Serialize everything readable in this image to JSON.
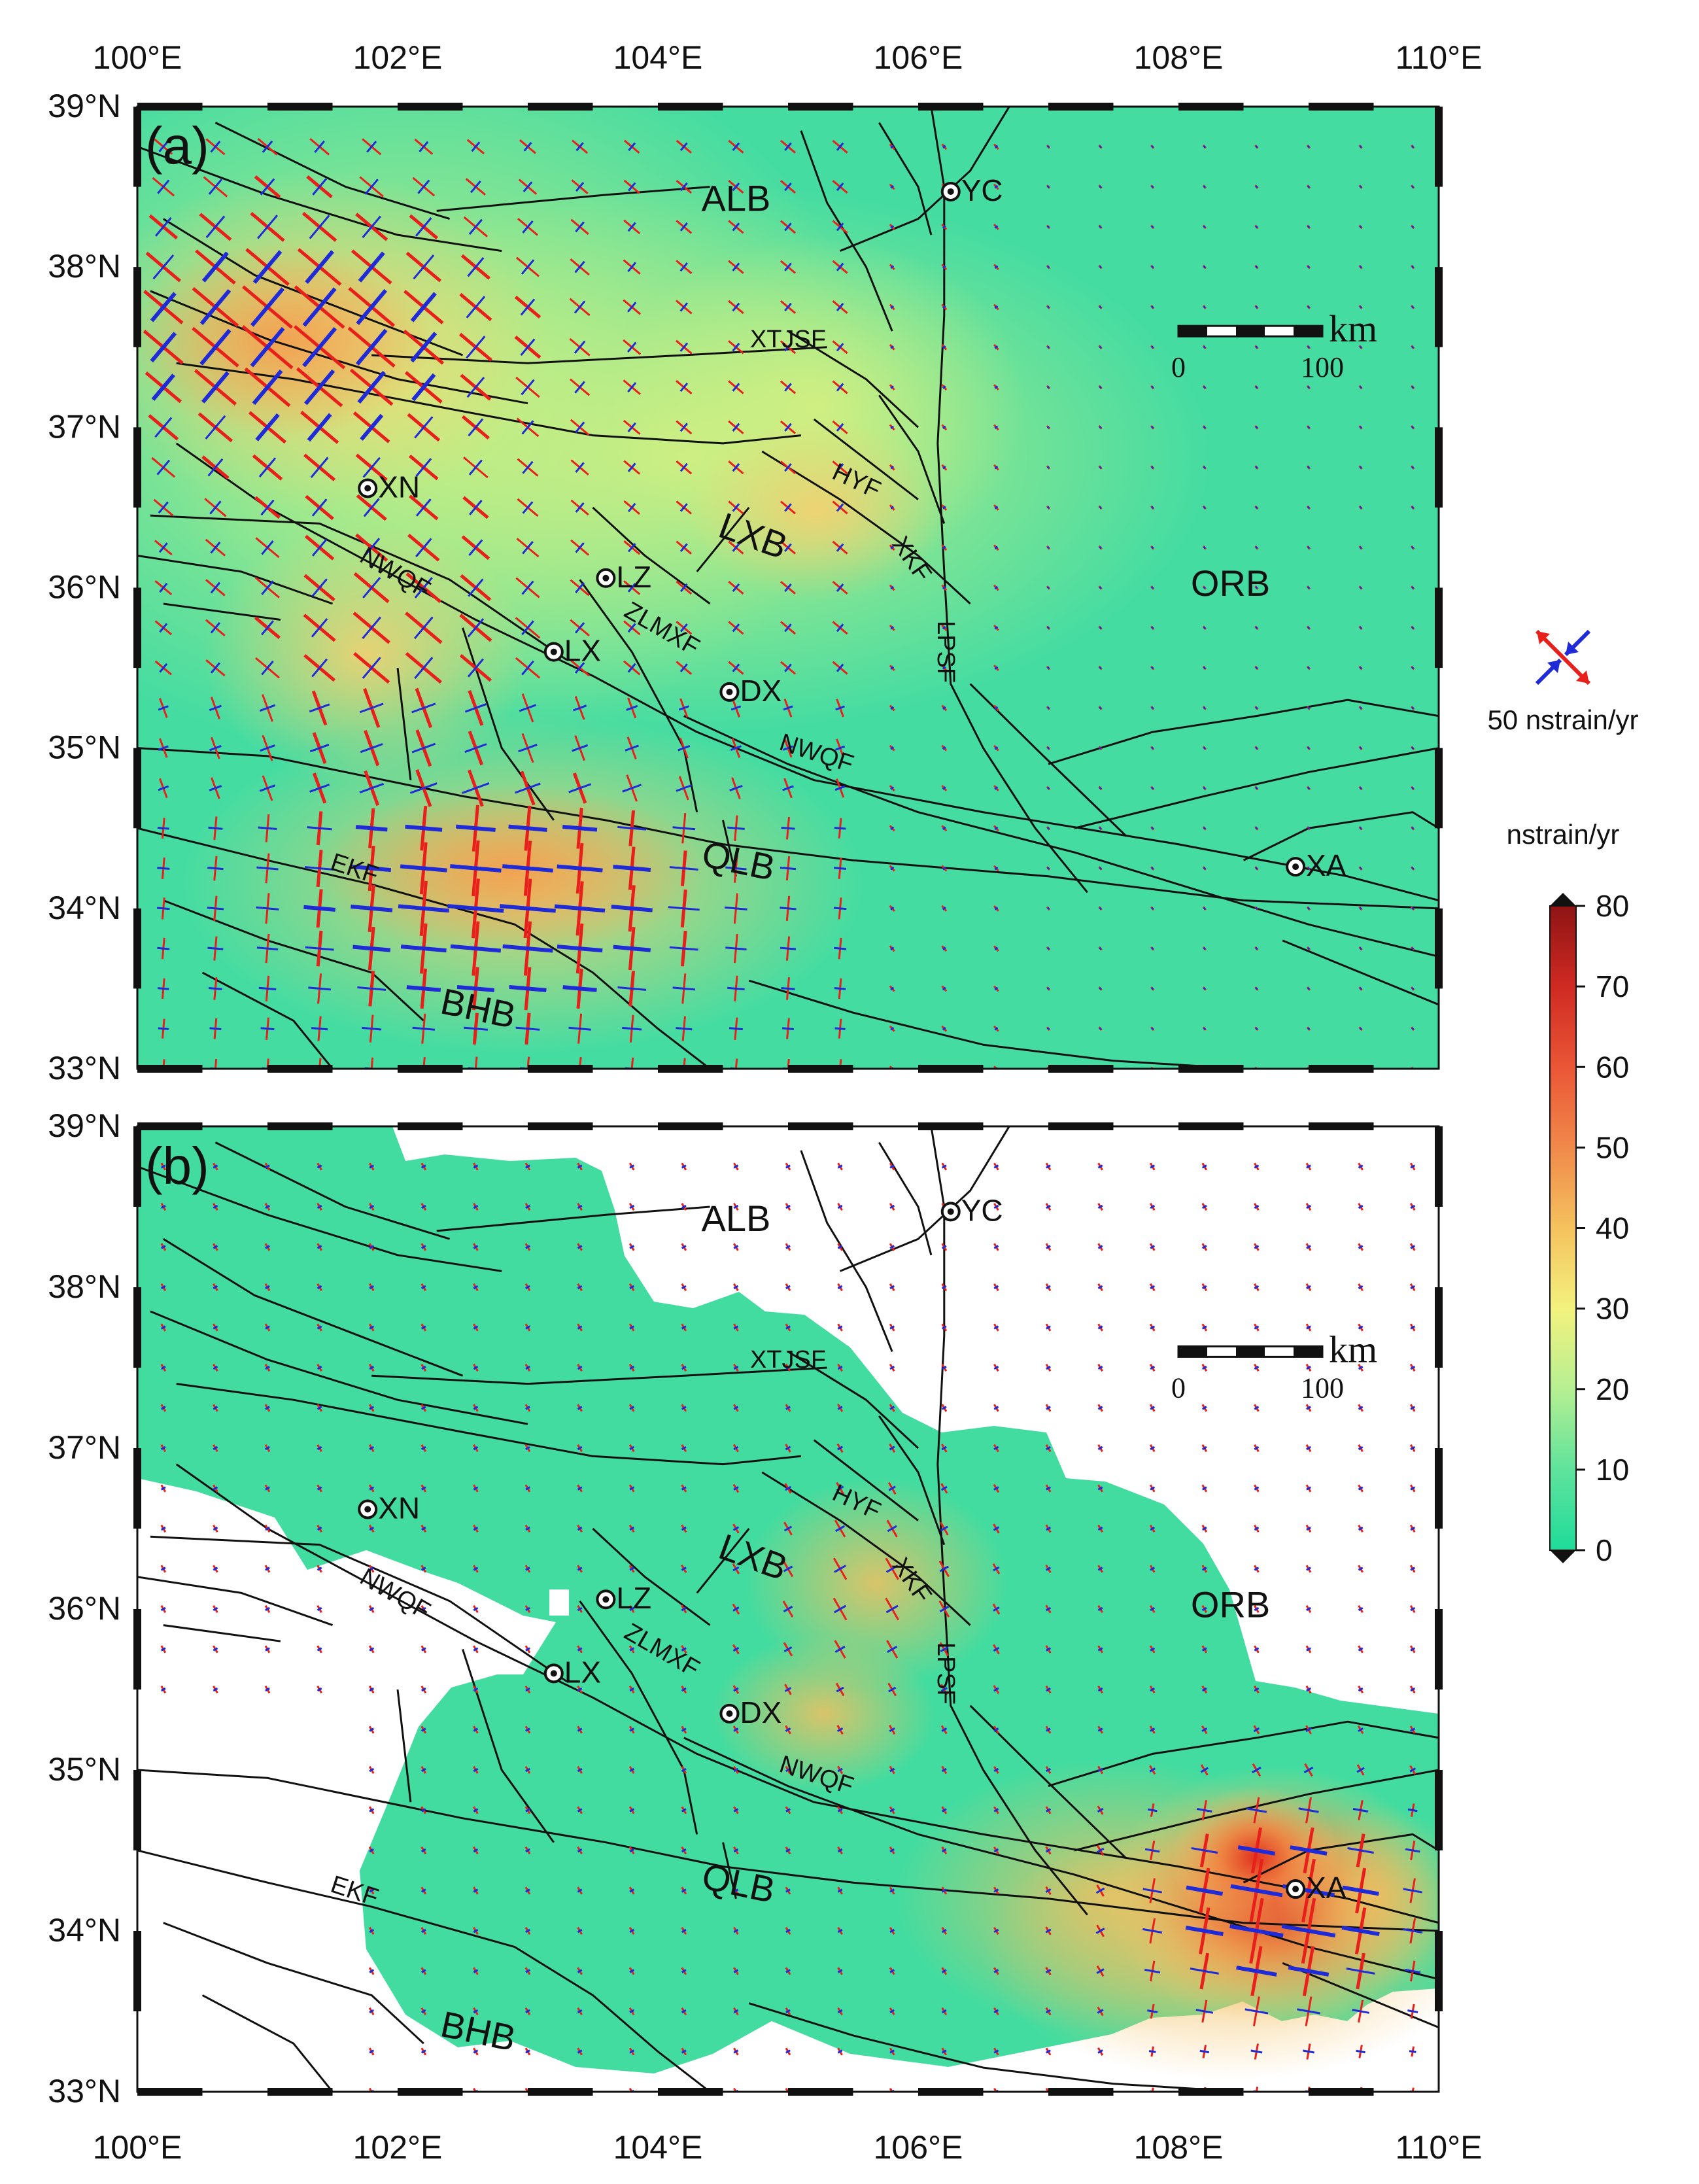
{
  "panels": [
    {
      "label": "(a)",
      "cities": [
        {
          "name": "YC",
          "lon": 106.25,
          "lat": 38.47
        },
        {
          "name": "XN",
          "lon": 101.77,
          "lat": 36.62
        },
        {
          "name": "LZ",
          "lon": 103.6,
          "lat": 36.06
        },
        {
          "name": "LX",
          "lon": 103.2,
          "lat": 35.6
        },
        {
          "name": "DX",
          "lon": 104.55,
          "lat": 35.35
        },
        {
          "name": "XA",
          "lon": 108.9,
          "lat": 34.26
        }
      ],
      "blocks": [
        {
          "name": "ALB",
          "lon": 104.6,
          "lat": 38.35
        },
        {
          "name": "LXB",
          "lon": 104.7,
          "lat": 36.25,
          "rotate": 20
        },
        {
          "name": "QLB",
          "lon": 104.6,
          "lat": 34.22,
          "rotate": 12
        },
        {
          "name": "BHB",
          "lon": 102.6,
          "lat": 33.3,
          "rotate": 12
        },
        {
          "name": "ORB",
          "lon": 108.4,
          "lat": 35.95
        }
      ],
      "faults": [
        {
          "name": "XTJSF",
          "lon": 105.0,
          "lat": 37.5,
          "rotate": 0
        },
        {
          "name": "HYF",
          "lon": 105.5,
          "lat": 36.62,
          "rotate": 25
        },
        {
          "name": "XKF",
          "lon": 105.9,
          "lat": 36.15,
          "rotate": 55
        },
        {
          "name": "LPSF",
          "lon": 106.15,
          "lat": 35.6,
          "rotate": 90
        },
        {
          "name": "NWQF",
          "lon": 101.95,
          "lat": 36.05,
          "rotate": 30
        },
        {
          "name": "ZLMXF",
          "lon": 104.0,
          "lat": 35.7,
          "rotate": 30
        },
        {
          "name": "NWQF",
          "lon": 105.2,
          "lat": 34.92,
          "rotate": 18
        },
        {
          "name": "EKF",
          "lon": 101.65,
          "lat": 34.2,
          "rotate": 18
        }
      ],
      "scale_bar": {
        "unit": "km",
        "labels": [
          "0",
          "100"
        ],
        "lon": 108.0,
        "lat": 37.6
      }
    },
    {
      "label": "(b)",
      "cities": [
        {
          "name": "YC",
          "lon": 106.25,
          "lat": 38.47
        },
        {
          "name": "XN",
          "lon": 101.77,
          "lat": 36.62
        },
        {
          "name": "LZ",
          "lon": 103.6,
          "lat": 36.06
        },
        {
          "name": "LX",
          "lon": 103.2,
          "lat": 35.6
        },
        {
          "name": "DX",
          "lon": 104.55,
          "lat": 35.35
        },
        {
          "name": "XA",
          "lon": 108.9,
          "lat": 34.26
        }
      ],
      "blocks": [
        {
          "name": "ALB",
          "lon": 104.6,
          "lat": 38.35
        },
        {
          "name": "LXB",
          "lon": 104.7,
          "lat": 36.25,
          "rotate": 20
        },
        {
          "name": "QLB",
          "lon": 104.6,
          "lat": 34.22,
          "rotate": 12
        },
        {
          "name": "BHB",
          "lon": 102.6,
          "lat": 33.3,
          "rotate": 12
        },
        {
          "name": "ORB",
          "lon": 108.4,
          "lat": 35.95
        }
      ],
      "faults": [
        {
          "name": "XTJSF",
          "lon": 105.0,
          "lat": 37.5,
          "rotate": 0
        },
        {
          "name": "HYF",
          "lon": 105.5,
          "lat": 36.62,
          "rotate": 25
        },
        {
          "name": "XKF",
          "lon": 105.9,
          "lat": 36.15,
          "rotate": 55
        },
        {
          "name": "LPSF",
          "lon": 106.15,
          "lat": 35.6,
          "rotate": 90
        },
        {
          "name": "NWQF",
          "lon": 101.95,
          "lat": 36.05,
          "rotate": 30
        },
        {
          "name": "ZLMXF",
          "lon": 104.0,
          "lat": 35.7,
          "rotate": 30
        },
        {
          "name": "NWQF",
          "lon": 105.2,
          "lat": 34.92,
          "rotate": 18
        },
        {
          "name": "EKF",
          "lon": 101.65,
          "lat": 34.2,
          "rotate": 18
        }
      ],
      "scale_bar": {
        "unit": "km",
        "labels": [
          "0",
          "100"
        ],
        "lon": 108.0,
        "lat": 37.6
      }
    }
  ],
  "axes": {
    "lon_ticks": [
      "100°E",
      "102°E",
      "104°E",
      "106°E",
      "108°E",
      "110°E"
    ],
    "lat_ticks": [
      "39°N",
      "38°N",
      "37°N",
      "36°N",
      "35°N",
      "34°N",
      "33°N"
    ],
    "lon_range": [
      100,
      110
    ],
    "lat_range": [
      33,
      39
    ]
  },
  "legend": {
    "vector_label": "50 nstrain/yr",
    "extension_color": "#e8201c",
    "compression_color": "#1f2bd6"
  },
  "colorbar": {
    "title": "nstrain/yr",
    "ticks": [
      "0",
      "10",
      "20",
      "30",
      "40",
      "50",
      "60",
      "70",
      "80"
    ],
    "range": [
      0,
      80
    ],
    "colors": [
      "#1fdb9a",
      "#5fe39c",
      "#b6ef92",
      "#f3f27e",
      "#f5c25e",
      "#f0894a",
      "#ea5636",
      "#cf2a22",
      "#8e1414"
    ]
  }
}
